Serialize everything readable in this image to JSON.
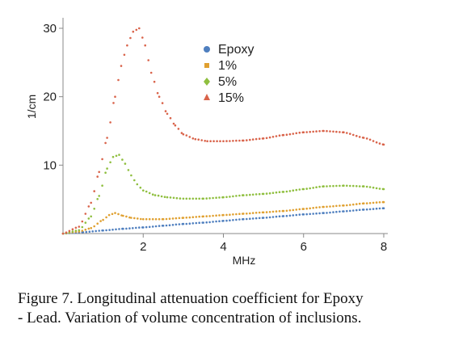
{
  "chart_data": {
    "type": "scatter",
    "xlabel": "MHz",
    "ylabel": "1/cm",
    "xlim": [
      0,
      8
    ],
    "ylim": [
      0,
      30
    ],
    "x_ticks": [
      2,
      4,
      6,
      8
    ],
    "y_ticks": [
      10,
      20,
      30
    ],
    "grid": false,
    "legend": "top-center",
    "series": [
      {
        "name": "Epoxy",
        "color": "#4f7fbf",
        "marker": "circle",
        "x": [
          0,
          0.5,
          1,
          1.5,
          2,
          2.5,
          3,
          3.5,
          4,
          4.5,
          5,
          5.5,
          6,
          6.5,
          7,
          7.5,
          8
        ],
        "y": [
          0,
          0.2,
          0.45,
          0.7,
          0.9,
          1.15,
          1.4,
          1.6,
          1.85,
          2.1,
          2.3,
          2.55,
          2.8,
          3.0,
          3.25,
          3.5,
          3.7
        ]
      },
      {
        "name": "1%",
        "color": "#e0a030",
        "marker": "square",
        "x": [
          0,
          0.4,
          0.7,
          1.0,
          1.15,
          1.3,
          1.5,
          1.7,
          2.0,
          2.5,
          3,
          3.5,
          4,
          4.5,
          5,
          5.5,
          6,
          6.5,
          7,
          7.5,
          8
        ],
        "y": [
          0,
          0.3,
          0.8,
          2.0,
          2.7,
          3.0,
          2.6,
          2.3,
          2.1,
          2.1,
          2.3,
          2.5,
          2.7,
          2.9,
          3.1,
          3.3,
          3.6,
          3.9,
          4.1,
          4.4,
          4.6
        ]
      },
      {
        "name": "5%",
        "color": "#8fbf3f",
        "marker": "diamond",
        "x": [
          0,
          0.4,
          0.7,
          0.9,
          1.1,
          1.25,
          1.4,
          1.55,
          1.7,
          1.85,
          2.0,
          2.3,
          2.6,
          3.0,
          3.5,
          4.0,
          4.5,
          5.0,
          5.5,
          6.0,
          6.5,
          7.0,
          7.5,
          8.0
        ],
        "y": [
          0,
          0.5,
          2.5,
          5.5,
          9.5,
          11.2,
          11.5,
          10.2,
          8.5,
          7.2,
          6.3,
          5.6,
          5.3,
          5.1,
          5.1,
          5.3,
          5.6,
          5.8,
          6.1,
          6.5,
          6.9,
          7.0,
          6.9,
          6.5
        ]
      },
      {
        "name": "15%",
        "color": "#d9634a",
        "marker": "triangle",
        "x": [
          0,
          0.4,
          0.7,
          0.9,
          1.1,
          1.3,
          1.45,
          1.6,
          1.75,
          1.9,
          2.05,
          2.2,
          2.4,
          2.6,
          2.8,
          3.0,
          3.3,
          3.6,
          4.0,
          4.5,
          5.0,
          5.5,
          6.0,
          6.5,
          7.0,
          7.5,
          8.0
        ],
        "y": [
          0,
          1.0,
          4.5,
          9.0,
          14.0,
          20.0,
          24.5,
          27.5,
          29.5,
          30.0,
          27.5,
          23.5,
          20.0,
          17.5,
          15.8,
          14.5,
          13.8,
          13.5,
          13.5,
          13.6,
          13.9,
          14.4,
          14.8,
          15.0,
          14.8,
          14.0,
          13.0
        ]
      }
    ]
  },
  "caption": {
    "line1": "Figure 7. Longitudinal attenuation coefficient for Epoxy",
    "line2": "- Lead. Variation of volume concentration of inclusions."
  }
}
